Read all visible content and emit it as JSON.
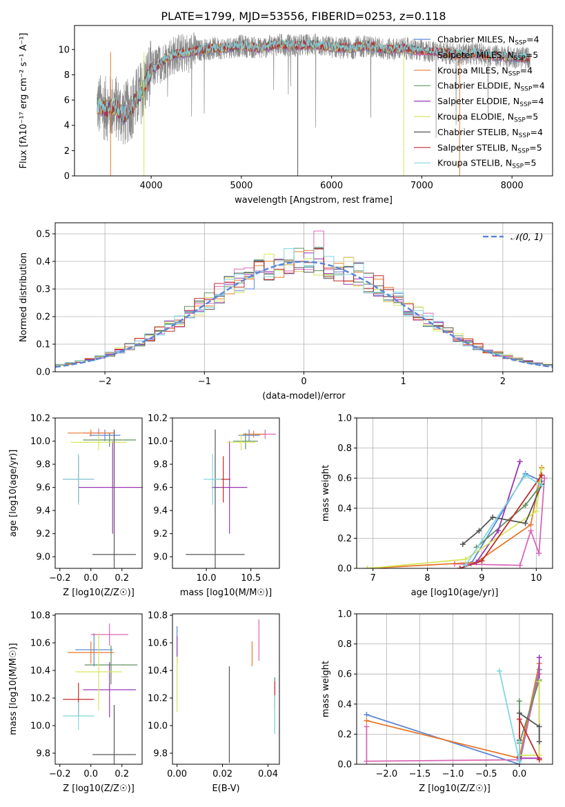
{
  "figure": {
    "title": "PLATE=1799, MJD=53556, FIBERID=0253, z=0.118"
  },
  "colors": {
    "chabrier_miles": "#5b86d6",
    "salpeter_miles": "#d966b3",
    "kroupa_miles": "#e8782b",
    "chabrier_elodie": "#5e9160",
    "salpeter_elodie": "#9a37b4",
    "kroupa_elodie": "#d6e65a",
    "chabrier_stelib": "#555555",
    "salpeter_stelib": "#c02a2a",
    "kroupa_stelib": "#7fd6df",
    "data": "#888888",
    "normal": "#5b86d6",
    "grid": "#b0b0b0"
  },
  "chart_data": [
    {
      "id": "spectrum",
      "type": "line",
      "xlabel": "wavelength [Angstrom, rest frame]",
      "ylabel": "Flux [fλ10⁻¹⁷ erg cm⁻² s⁻¹ A⁻¹]",
      "xlim": [
        3150,
        8450
      ],
      "ylim": [
        0,
        11.9
      ],
      "xticks": [
        4000,
        5000,
        6000,
        7000,
        8000
      ],
      "yticks": [
        0,
        2,
        4,
        6,
        8,
        10
      ],
      "grid": false,
      "legend_position": "right",
      "data_range": [
        3400,
        8200
      ],
      "continuum_x": [
        3400,
        3500,
        3600,
        3700,
        3800,
        3900,
        4000,
        4100,
        4200,
        4300,
        4400,
        4500,
        4600,
        4700,
        4800,
        4900,
        5000,
        5200,
        5400,
        5600,
        5800,
        6000,
        6200,
        6400,
        6600,
        6800,
        7000,
        7200,
        7400,
        7600,
        7800,
        8000,
        8200
      ],
      "continuum_y": [
        5.6,
        5.3,
        5.5,
        4.8,
        5.6,
        6.8,
        8.3,
        8.9,
        9.4,
        9.7,
        9.7,
        9.9,
        10.0,
        10.1,
        10.1,
        10.2,
        10.3,
        10.1,
        10.4,
        10.3,
        10.4,
        10.2,
        10.1,
        10.3,
        10.0,
        10.1,
        9.9,
        9.8,
        9.6,
        9.7,
        9.5,
        9.4,
        9.3
      ],
      "legend": [
        {
          "model": "Chabrier MILES",
          "n": "4",
          "color_key": "chabrier_miles"
        },
        {
          "model": "Salpeter MILES",
          "n": "5",
          "color_key": "salpeter_miles"
        },
        {
          "model": "Kroupa MILES",
          "n": "4",
          "color_key": "kroupa_miles"
        },
        {
          "model": "Chabrier ELODIE",
          "n": "4",
          "color_key": "chabrier_elodie"
        },
        {
          "model": "Salpeter ELODIE",
          "n": "4",
          "color_key": "salpeter_elodie"
        },
        {
          "model": "Kroupa ELODIE",
          "n": "5",
          "color_key": "kroupa_elodie"
        },
        {
          "model": "Chabrier STELIB",
          "n": "4",
          "color_key": "chabrier_stelib"
        },
        {
          "model": "Salpeter STELIB",
          "n": "5",
          "color_key": "salpeter_stelib"
        },
        {
          "model": "Kroupa STELIB",
          "n": "5",
          "color_key": "kroupa_stelib"
        }
      ],
      "legend_label_format": "{model}, N_SSP={n}",
      "legend_sub": "SSP"
    },
    {
      "id": "residuals",
      "type": "histogram",
      "xlabel": "(data-model)/error",
      "ylabel": "Normed distribution",
      "xlim": [
        -2.5,
        2.5
      ],
      "ylim": [
        0,
        0.54
      ],
      "xticks": [
        -2,
        -1,
        0,
        1,
        2
      ],
      "yticks": [
        0.0,
        0.1,
        0.2,
        0.3,
        0.4,
        0.5
      ],
      "grid": true,
      "legend": [
        {
          "label": "𝒩(0, 1)",
          "color_key": "normal"
        }
      ],
      "legend_position": "top-right",
      "bin_width": 0.1,
      "series_colors": [
        "chabrier_miles",
        "salpeter_miles",
        "kroupa_miles",
        "chabrier_elodie",
        "salpeter_elodie",
        "kroupa_elodie",
        "chabrier_stelib",
        "salpeter_stelib",
        "kroupa_stelib"
      ]
    },
    {
      "id": "z_age",
      "type": "errorbar",
      "xlabel": "Z [log10(Z/Z☉)]",
      "ylabel": "age  [log10(age/yr)]",
      "xlim": [
        -0.23,
        0.33
      ],
      "ylim": [
        8.9,
        10.2
      ],
      "xticks": [
        -0.2,
        0.0,
        0.2
      ],
      "yticks": [
        9.0,
        9.2,
        9.4,
        9.6,
        9.8,
        10.0,
        10.2
      ],
      "points": [
        {
          "c": "chabrier_miles",
          "x": 0.09,
          "y": 10.05,
          "xe": 0.1,
          "ye": 0.05
        },
        {
          "c": "salpeter_miles",
          "x": 0.05,
          "y": 10.07,
          "xe": 0.1,
          "ye": 0.04
        },
        {
          "c": "kroupa_miles",
          "x": 0.0,
          "y": 10.07,
          "xe": 0.15,
          "ye": 0.03
        },
        {
          "c": "chabrier_elodie",
          "x": 0.12,
          "y": 10.01,
          "xe": 0.17,
          "ye": 0.06
        },
        {
          "c": "salpeter_elodie",
          "x": 0.14,
          "y": 9.6,
          "xe": 0.22,
          "ye": 0.4
        },
        {
          "c": "kroupa_elodie",
          "x": 0.05,
          "y": 9.99,
          "xe": 0.18,
          "ye": 0.07
        },
        {
          "c": "chabrier_stelib",
          "x": 0.15,
          "y": 9.02,
          "xe": 0.14,
          "ye": 1.08
        },
        {
          "c": "salpeter_stelib",
          "x": -0.08,
          "y": 9.67,
          "xe": 0.1,
          "ye": 0.2
        },
        {
          "c": "kroupa_stelib",
          "x": -0.08,
          "y": 9.67,
          "xe": 0.1,
          "ye": 0.22
        }
      ]
    },
    {
      "id": "mass_age",
      "type": "errorbar",
      "xlabel": "mass [log10(M/M☉)]",
      "ylabel": "",
      "xlim": [
        9.62,
        10.82
      ],
      "ylim": [
        8.9,
        10.2
      ],
      "xticks": [
        10.0,
        10.5
      ],
      "yticks": [
        9.0,
        9.2,
        9.4,
        9.6,
        9.8,
        10.0,
        10.2
      ],
      "points": [
        {
          "c": "chabrier_miles",
          "x": 10.48,
          "y": 10.05,
          "xe": 0.12,
          "ye": 0.05
        },
        {
          "c": "salpeter_miles",
          "x": 10.66,
          "y": 10.06,
          "xe": 0.12,
          "ye": 0.04
        },
        {
          "c": "kroupa_miles",
          "x": 10.53,
          "y": 10.06,
          "xe": 0.12,
          "ye": 0.03
        },
        {
          "c": "chabrier_elodie",
          "x": 10.44,
          "y": 10.0,
          "xe": 0.14,
          "ye": 0.07
        },
        {
          "c": "salpeter_elodie",
          "x": 10.26,
          "y": 9.6,
          "xe": 0.2,
          "ye": 0.4
        },
        {
          "c": "kroupa_elodie",
          "x": 10.39,
          "y": 9.99,
          "xe": 0.16,
          "ye": 0.07
        },
        {
          "c": "chabrier_stelib",
          "x": 10.1,
          "y": 9.02,
          "xe": 0.33,
          "ye": 1.08
        },
        {
          "c": "salpeter_stelib",
          "x": 10.19,
          "y": 9.67,
          "xe": 0.08,
          "ye": 0.2
        },
        {
          "c": "kroupa_stelib",
          "x": 10.07,
          "y": 9.67,
          "xe": 0.1,
          "ye": 0.22
        }
      ]
    },
    {
      "id": "age_massweight",
      "type": "line",
      "xlabel": "age  [log10(age/yr)]",
      "ylabel": "mass weight",
      "xlim": [
        6.7,
        10.3
      ],
      "ylim": [
        0,
        1.0
      ],
      "xticks": [
        7,
        8,
        9,
        10
      ],
      "yticks": [
        0.0,
        0.2,
        0.4,
        0.6,
        0.8,
        1.0
      ],
      "grid": true,
      "series": [
        {
          "c": "chabrier_miles",
          "x": [
            8.6,
            8.8,
            9.8,
            10.1
          ],
          "y": [
            0.0,
            0.03,
            0.63,
            0.58
          ]
        },
        {
          "c": "salpeter_miles",
          "x": [
            8.5,
            9.7,
            9.9,
            10.05,
            10.15
          ],
          "y": [
            0.03,
            0.02,
            0.25,
            0.1,
            0.6
          ]
        },
        {
          "c": "kroupa_miles",
          "x": [
            6.9,
            8.9,
            9.9,
            10.1
          ],
          "y": [
            0.0,
            0.04,
            0.29,
            0.67
          ]
        },
        {
          "c": "chabrier_elodie",
          "x": [
            8.9,
            9.8,
            10.1
          ],
          "y": [
            0.14,
            0.42,
            0.56
          ]
        },
        {
          "c": "salpeter_elodie",
          "x": [
            8.9,
            9.3,
            9.7
          ],
          "y": [
            0.04,
            0.25,
            0.71
          ]
        },
        {
          "c": "kroupa_elodie",
          "x": [
            6.9,
            8.7,
            10.0,
            10.1
          ],
          "y": [
            0.0,
            0.06,
            0.38,
            0.66
          ]
        },
        {
          "c": "chabrier_stelib",
          "x": [
            8.65,
            8.95,
            9.2,
            9.8,
            10.1
          ],
          "y": [
            0.16,
            0.25,
            0.34,
            0.3,
            0.56
          ]
        },
        {
          "c": "salpeter_stelib",
          "x": [
            8.6,
            9.0,
            10.1
          ],
          "y": [
            0.0,
            0.05,
            0.62
          ]
        },
        {
          "c": "kroupa_stelib",
          "x": [
            8.7,
            9.8,
            10.1
          ],
          "y": [
            0.02,
            0.62,
            0.55
          ]
        }
      ]
    },
    {
      "id": "z_mass",
      "type": "errorbar",
      "xlabel": "Z [log10(Z/Z☉)]",
      "ylabel": "mass [log10(M/M☉)]",
      "xlim": [
        -0.23,
        0.33
      ],
      "ylim": [
        9.72,
        10.81
      ],
      "xticks": [
        -0.2,
        0.0,
        0.2
      ],
      "yticks": [
        9.8,
        10.0,
        10.2,
        10.4,
        10.6,
        10.8
      ],
      "points": [
        {
          "c": "chabrier_miles",
          "x": 0.02,
          "y": 10.55,
          "xe": 0.12,
          "ye": 0.12
        },
        {
          "c": "salpeter_miles",
          "x": 0.12,
          "y": 10.66,
          "xe": 0.12,
          "ye": 0.08
        },
        {
          "c": "kroupa_miles",
          "x": 0.0,
          "y": 10.53,
          "xe": 0.15,
          "ye": 0.08
        },
        {
          "c": "chabrier_elodie",
          "x": 0.13,
          "y": 10.44,
          "xe": 0.17,
          "ye": 0.14
        },
        {
          "c": "salpeter_elodie",
          "x": 0.12,
          "y": 10.26,
          "xe": 0.17,
          "ye": 0.2
        },
        {
          "c": "kroupa_elodie",
          "x": 0.05,
          "y": 10.39,
          "xe": 0.15,
          "ye": 0.28
        },
        {
          "c": "chabrier_stelib",
          "x": 0.15,
          "y": 9.79,
          "xe": 0.14,
          "ye": 0.36
        },
        {
          "c": "salpeter_stelib",
          "x": -0.08,
          "y": 10.19,
          "xe": 0.1,
          "ye": 0.12
        },
        {
          "c": "kroupa_stelib",
          "x": -0.08,
          "y": 10.07,
          "xe": 0.1,
          "ye": 0.1
        }
      ]
    },
    {
      "id": "ebv_mass",
      "type": "errorbar",
      "xlabel": "E(B-V)",
      "ylabel": "",
      "xlim": [
        -0.002,
        0.045
      ],
      "ylim": [
        9.72,
        10.81
      ],
      "xticks": [
        0.0,
        0.02,
        0.04
      ],
      "yticks": [
        9.8,
        10.0,
        10.2,
        10.4,
        10.6,
        10.8
      ],
      "points": [
        {
          "c": "chabrier_miles",
          "x": 0.0,
          "y": 10.6,
          "xe": 0,
          "ye": 0.12
        },
        {
          "c": "salpeter_miles",
          "x": 0.036,
          "y": 10.62,
          "xe": 0,
          "ye": 0.15
        },
        {
          "c": "kroupa_miles",
          "x": 0.033,
          "y": 10.52,
          "xe": 0,
          "ye": 0.09
        },
        {
          "c": "chabrier_elodie",
          "x": 0.043,
          "y": 10.15,
          "xe": 0,
          "ye": 0.2
        },
        {
          "c": "salpeter_elodie",
          "x": 0.0,
          "y": 10.55,
          "xe": 0,
          "ye": 0.1
        },
        {
          "c": "kroupa_elodie",
          "x": 0.0,
          "y": 10.3,
          "xe": 0,
          "ye": 0.2
        },
        {
          "c": "chabrier_stelib",
          "x": 0.023,
          "y": 10.08,
          "xe": 0,
          "ye": 0.35
        },
        {
          "c": "salpeter_stelib",
          "x": 0.043,
          "y": 10.22,
          "xe": 0,
          "ye": 0.1
        },
        {
          "c": "kroupa_stelib",
          "x": 0.043,
          "y": 10.08,
          "xe": 0,
          "ye": 0.14
        }
      ]
    },
    {
      "id": "z_massweight",
      "type": "line",
      "xlabel": "Z [log10(Z/Z☉)]",
      "ylabel": "mass weight",
      "xlim": [
        -2.45,
        0.5
      ],
      "ylim": [
        0,
        1.0
      ],
      "xticks": [
        -2.0,
        -1.5,
        -1.0,
        -0.5,
        0.0
      ],
      "yticks": [
        0.0,
        0.2,
        0.4,
        0.6,
        0.8,
        1.0
      ],
      "grid": true,
      "series": [
        {
          "c": "chabrier_miles",
          "x": [
            -2.3,
            0.0,
            0.3
          ],
          "y": [
            0.33,
            0.0,
            0.63
          ]
        },
        {
          "c": "salpeter_miles",
          "x": [
            -2.3,
            -2.3,
            0.0,
            0.3
          ],
          "y": [
            0.25,
            0.02,
            0.03,
            0.6
          ]
        },
        {
          "c": "kroupa_miles",
          "x": [
            -2.3,
            0.0,
            0.3
          ],
          "y": [
            0.29,
            0.04,
            0.67
          ]
        },
        {
          "c": "chabrier_elodie",
          "x": [
            0.0,
            0.0,
            0.3
          ],
          "y": [
            0.42,
            0.14,
            0.56
          ]
        },
        {
          "c": "salpeter_elodie",
          "x": [
            0.0,
            0.3,
            0.3
          ],
          "y": [
            0.04,
            0.04,
            0.71
          ]
        },
        {
          "c": "kroupa_elodie",
          "x": [
            0.0,
            0.3,
            0.3
          ],
          "y": [
            0.06,
            0.06,
            0.55
          ]
        },
        {
          "c": "chabrier_stelib",
          "x": [
            0.0,
            0.0,
            0.3,
            0.3
          ],
          "y": [
            0.16,
            0.34,
            0.25,
            0.15
          ]
        },
        {
          "c": "salpeter_stelib",
          "x": [
            0.0,
            0.0,
            0.3
          ],
          "y": [
            0.05,
            0.3,
            0.03
          ]
        },
        {
          "c": "kroupa_stelib",
          "x": [
            -0.3,
            0.0,
            0.0
          ],
          "y": [
            0.62,
            0.02,
            0.15
          ]
        }
      ]
    }
  ]
}
